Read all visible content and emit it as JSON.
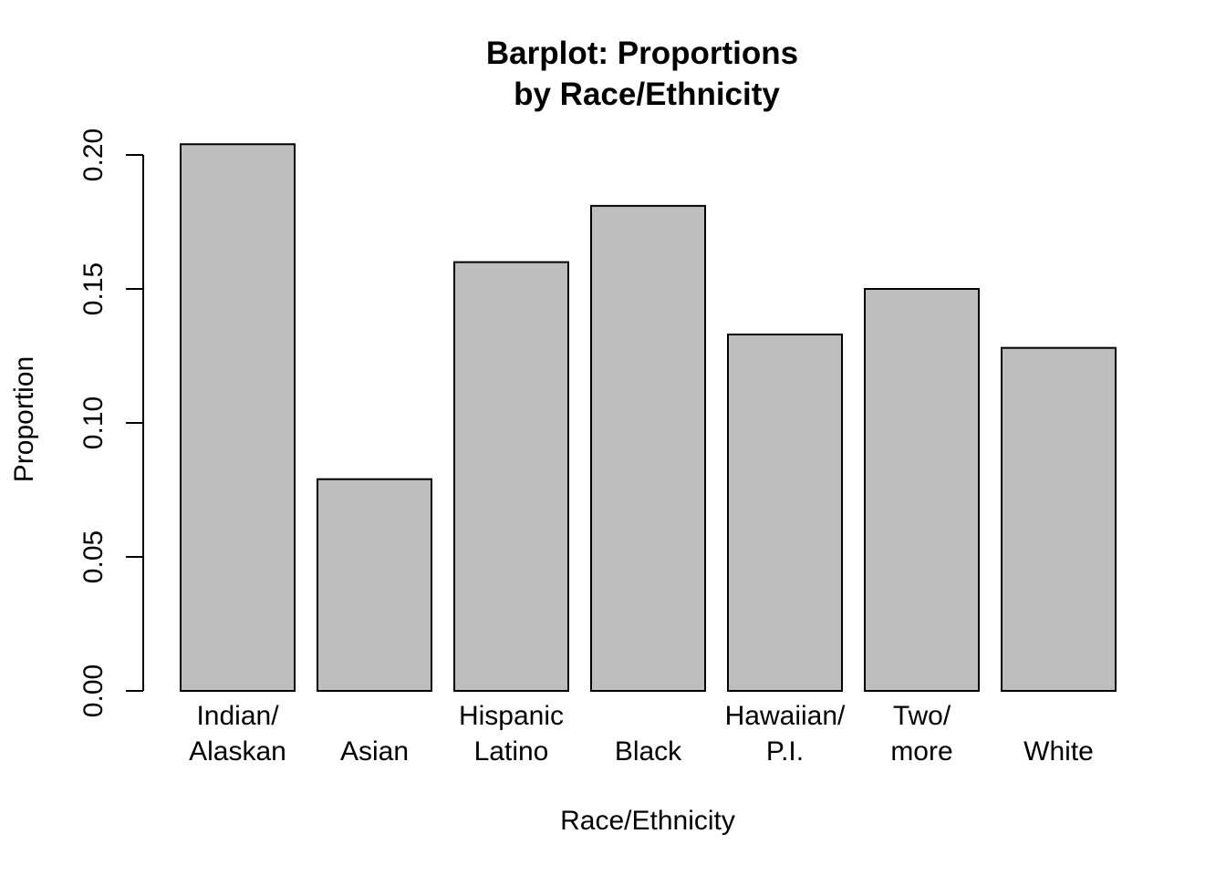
{
  "chart_data": {
    "type": "bar",
    "title_lines": [
      "Barplot: Proportions",
      "by Race/Ethnicity"
    ],
    "xlabel": "Race/Ethnicity",
    "ylabel": "Proportion",
    "ylim": [
      0,
      0.2
    ],
    "yticks": [
      "0.00",
      "0.05",
      "0.10",
      "0.15",
      "0.20"
    ],
    "categories": [
      [
        "Indian/",
        "Alaskan"
      ],
      [
        "Asian"
      ],
      [
        "Hispanic",
        "Latino"
      ],
      [
        "Black"
      ],
      [
        "Hawaiian/",
        "P.I."
      ],
      [
        "Two/",
        "more"
      ],
      [
        "White"
      ]
    ],
    "values": [
      0.204,
      0.079,
      0.16,
      0.181,
      0.133,
      0.15,
      0.128
    ],
    "bar_color": "#bebebe",
    "grid": false,
    "legend": "none"
  }
}
